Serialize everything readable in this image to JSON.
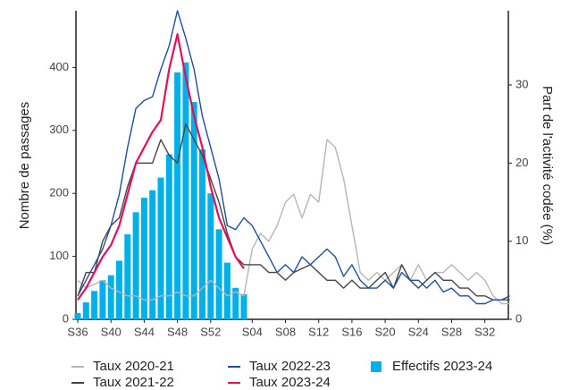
{
  "chart_data": {
    "type": "combo",
    "y_label": "Nombre de passages",
    "y2_label": "Part de l'activité codée (%)",
    "categories": [
      "S36",
      null,
      null,
      null,
      "S40",
      null,
      null,
      null,
      "S44",
      null,
      null,
      null,
      "S48",
      null,
      null,
      null,
      "S52",
      null,
      null,
      null,
      null,
      "S04",
      null,
      null,
      null,
      "S08",
      null,
      null,
      null,
      "S12",
      null,
      null,
      null,
      "S16",
      null,
      null,
      null,
      "S20",
      null,
      null,
      null,
      "S24",
      null,
      null,
      null,
      "S28",
      null,
      null,
      null,
      "S32",
      null,
      null,
      null
    ],
    "ylim": [
      0,
      490
    ],
    "yticks": [
      0,
      100,
      200,
      300,
      400
    ],
    "y2lim": [
      0,
      39.5
    ],
    "y2ticks": [
      0,
      10,
      20,
      30
    ],
    "series": [
      {
        "name": "Taux 2020-21",
        "type": "line",
        "axis": "y2",
        "color": "#b5b5b5",
        "values": [
          5,
          4,
          4.5,
          5,
          4,
          3.5,
          3,
          3,
          2.5,
          2.5,
          3,
          3,
          3.5,
          3,
          3,
          4,
          5,
          4,
          3,
          3.5,
          3,
          9,
          11,
          10,
          12,
          15,
          16,
          13,
          16,
          15,
          23,
          22,
          18,
          12,
          6,
          5,
          6,
          5,
          6,
          7,
          5,
          7,
          5,
          6,
          6,
          7,
          6,
          5,
          6,
          5,
          3,
          2,
          2
        ]
      },
      {
        "name": "Taux 2021-22",
        "type": "line",
        "axis": "y2",
        "color": "#444444",
        "values": [
          3,
          6,
          6,
          10,
          12,
          13,
          17,
          20,
          20,
          20,
          23,
          21,
          20,
          25,
          23,
          21,
          18,
          15,
          11,
          8,
          7,
          7,
          7,
          6,
          6,
          5,
          6,
          6.5,
          7,
          6,
          5,
          5,
          4,
          5,
          4,
          4,
          5,
          6,
          4,
          7,
          5,
          4,
          5,
          6,
          5,
          5,
          4,
          4,
          3,
          3,
          2.5,
          2.5,
          2.5
        ]
      },
      {
        "name": "Taux 2022-23",
        "type": "line",
        "axis": "y2",
        "color": "#1f4e9c",
        "values": [
          3,
          5,
          7,
          9,
          12,
          16,
          22,
          27,
          28,
          28.5,
          32,
          35,
          39.5,
          36,
          32,
          26,
          22,
          18,
          12,
          11.5,
          13,
          12,
          10,
          8,
          6,
          7,
          6,
          8,
          7,
          8,
          9,
          8,
          5.5,
          7,
          5,
          4,
          4,
          5,
          4,
          6,
          5,
          5,
          4,
          5,
          3.5,
          4,
          3,
          3,
          2,
          2,
          2.5,
          2.5,
          3
        ]
      },
      {
        "name": "Taux 2023-24",
        "type": "line",
        "axis": "y2",
        "color": "#e0105a",
        "values": [
          2.5,
          4,
          6,
          8,
          9.5,
          12,
          16,
          20,
          22,
          24,
          25.5,
          32,
          36.5,
          31,
          26,
          22,
          17,
          13,
          10.5,
          8,
          6.5,
          null,
          null,
          null,
          null,
          null,
          null,
          null,
          null,
          null,
          null,
          null,
          null,
          null,
          null,
          null,
          null,
          null,
          null,
          null,
          null,
          null,
          null,
          null,
          null,
          null,
          null,
          null,
          null,
          null,
          null,
          null,
          null
        ]
      },
      {
        "name": "Effectifs 2023-24",
        "type": "bar",
        "color": "#00b0e8",
        "values": [
          10,
          27,
          45,
          62,
          70,
          93,
          135,
          170,
          193,
          205,
          225,
          262,
          392,
          408,
          345,
          270,
          200,
          143,
          90,
          50,
          40,
          null,
          null,
          null,
          null,
          null,
          null,
          null,
          null,
          null,
          null,
          null,
          null,
          null,
          null,
          null,
          null,
          null,
          null,
          null,
          null,
          null,
          null,
          null,
          null,
          null,
          null,
          null,
          null,
          null,
          null,
          null,
          null
        ]
      }
    ]
  }
}
